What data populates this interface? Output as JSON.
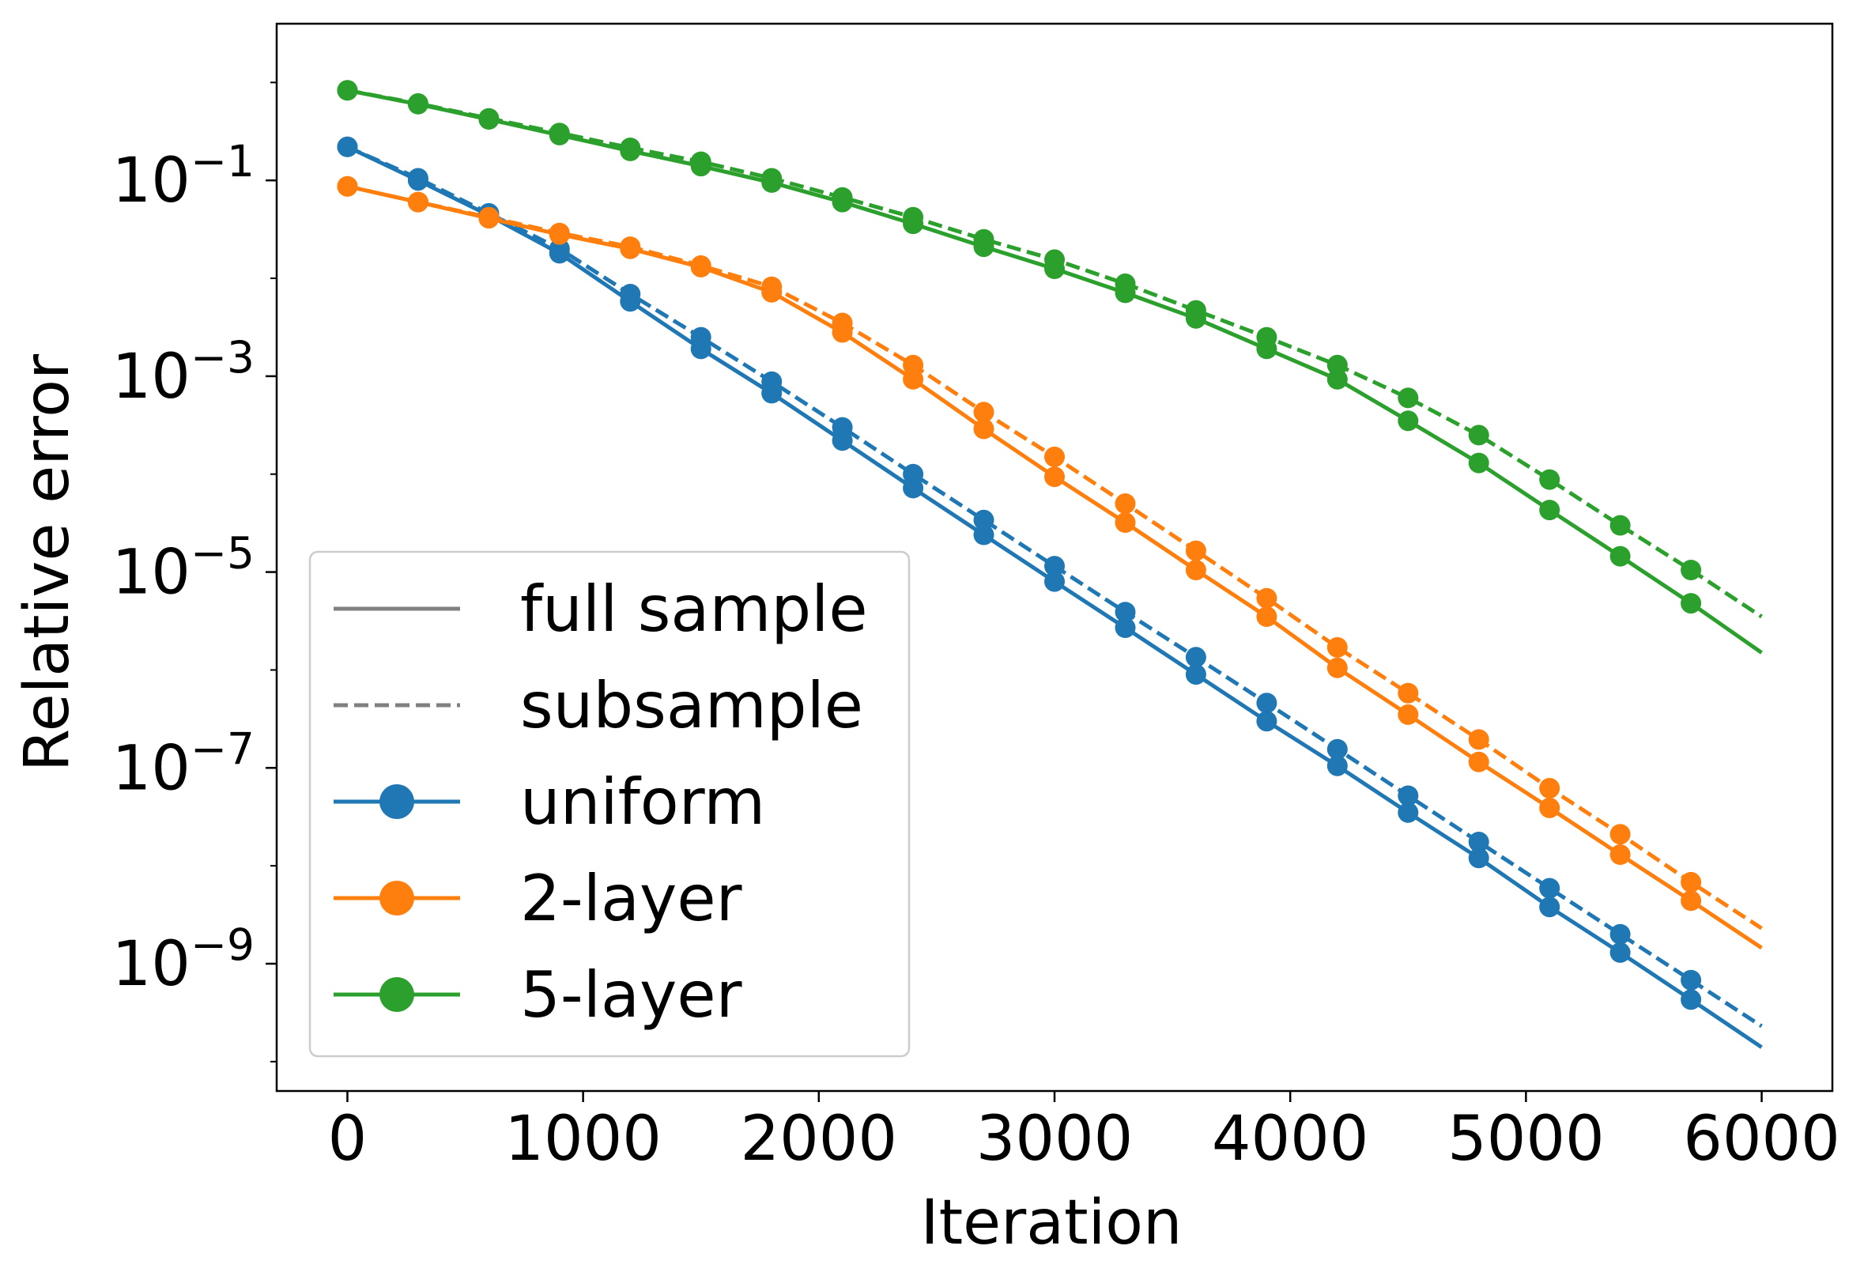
{
  "chart_data": {
    "type": "line",
    "title": "",
    "xlabel": "Iteration",
    "ylabel": "Relative error",
    "yscale": "log",
    "xlim": [
      -300,
      6300
    ],
    "ylim_log10": [
      -10.3,
      0.6
    ],
    "xticks": [
      0,
      1000,
      2000,
      3000,
      4000,
      5000,
      6000
    ],
    "xtick_labels": [
      "0",
      "1000",
      "2000",
      "3000",
      "4000",
      "5000",
      "6000"
    ],
    "yticks_exponent": [
      -1,
      -3,
      -5,
      -7,
      -9
    ],
    "ytick_base": "10",
    "ytick_exponent_labels": [
      "−1",
      "−3",
      "−5",
      "−7",
      "−9"
    ],
    "grid": false,
    "legend_position": "lower-left",
    "legend": [
      {
        "label": "full sample",
        "color": "#808080",
        "style": "solid",
        "marker": false
      },
      {
        "label": "subsample",
        "color": "#808080",
        "style": "dashed",
        "marker": false
      },
      {
        "label": "uniform",
        "color": "#1f77b4",
        "style": "solid",
        "marker": true
      },
      {
        "label": "2-layer",
        "color": "#ff7f0e",
        "style": "solid",
        "marker": true
      },
      {
        "label": "5-layer",
        "color": "#2ca02c",
        "style": "solid",
        "marker": true
      }
    ],
    "x": [
      0,
      300,
      600,
      900,
      1200,
      1500,
      1800,
      2100,
      2400,
      2700,
      3000,
      3300,
      3600,
      3900,
      4200,
      4500,
      4800,
      5100,
      5400,
      5700,
      6000
    ],
    "series": [
      {
        "group": "uniform",
        "variant": "full sample",
        "color": "#1f77b4",
        "dashed": false,
        "values": [
          0.22,
          0.1,
          0.044,
          0.018,
          0.0058,
          0.0019,
          0.00067,
          0.00022,
          7.2e-05,
          2.4e-05,
          8e-06,
          2.7e-06,
          9e-07,
          3e-07,
          1.05e-07,
          3.5e-08,
          1.2e-08,
          3.8e-09,
          1.3e-09,
          4.3e-10,
          1.4e-10
        ]
      },
      {
        "group": "uniform",
        "variant": "subsample",
        "color": "#1f77b4",
        "dashed": true,
        "values": [
          0.22,
          0.105,
          0.046,
          0.02,
          0.0069,
          0.0025,
          0.00088,
          0.0003,
          0.0001,
          3.4e-05,
          1.15e-05,
          3.9e-06,
          1.35e-06,
          4.6e-07,
          1.55e-07,
          5.2e-08,
          1.75e-08,
          5.9e-09,
          2e-09,
          6.8e-10,
          2.3e-10
        ]
      },
      {
        "group": "2-layer",
        "variant": "full sample",
        "color": "#ff7f0e",
        "dashed": false,
        "values": [
          0.087,
          0.06,
          0.041,
          0.028,
          0.02,
          0.013,
          0.0072,
          0.0028,
          0.00093,
          0.00029,
          9.4e-05,
          3.2e-05,
          1.05e-05,
          3.5e-06,
          1.05e-06,
          3.5e-07,
          1.15e-07,
          3.9e-08,
          1.3e-08,
          4.4e-09,
          1.45e-09
        ]
      },
      {
        "group": "2-layer",
        "variant": "subsample",
        "color": "#ff7f0e",
        "dashed": true,
        "values": [
          0.087,
          0.06,
          0.042,
          0.029,
          0.021,
          0.0135,
          0.0082,
          0.0035,
          0.0013,
          0.00043,
          0.00015,
          5e-05,
          1.65e-05,
          5.4e-06,
          1.7e-06,
          5.8e-07,
          1.95e-07,
          6.2e-08,
          2.1e-08,
          6.8e-09,
          2.3e-09
        ]
      },
      {
        "group": "5-layer",
        "variant": "full sample",
        "color": "#2ca02c",
        "dashed": false,
        "values": [
          0.83,
          0.6,
          0.42,
          0.29,
          0.2,
          0.14,
          0.095,
          0.06,
          0.036,
          0.021,
          0.0125,
          0.0071,
          0.0039,
          0.0019,
          0.00093,
          0.00035,
          0.00013,
          4.3e-05,
          1.45e-05,
          4.8e-06,
          1.5e-06
        ]
      },
      {
        "group": "5-layer",
        "variant": "subsample",
        "color": "#2ca02c",
        "dashed": true,
        "values": [
          0.83,
          0.61,
          0.43,
          0.305,
          0.215,
          0.155,
          0.105,
          0.067,
          0.042,
          0.025,
          0.0155,
          0.0088,
          0.0047,
          0.0025,
          0.0013,
          0.0006,
          0.00025,
          8.8e-05,
          3e-05,
          1.05e-05,
          3.5e-06
        ]
      }
    ]
  }
}
